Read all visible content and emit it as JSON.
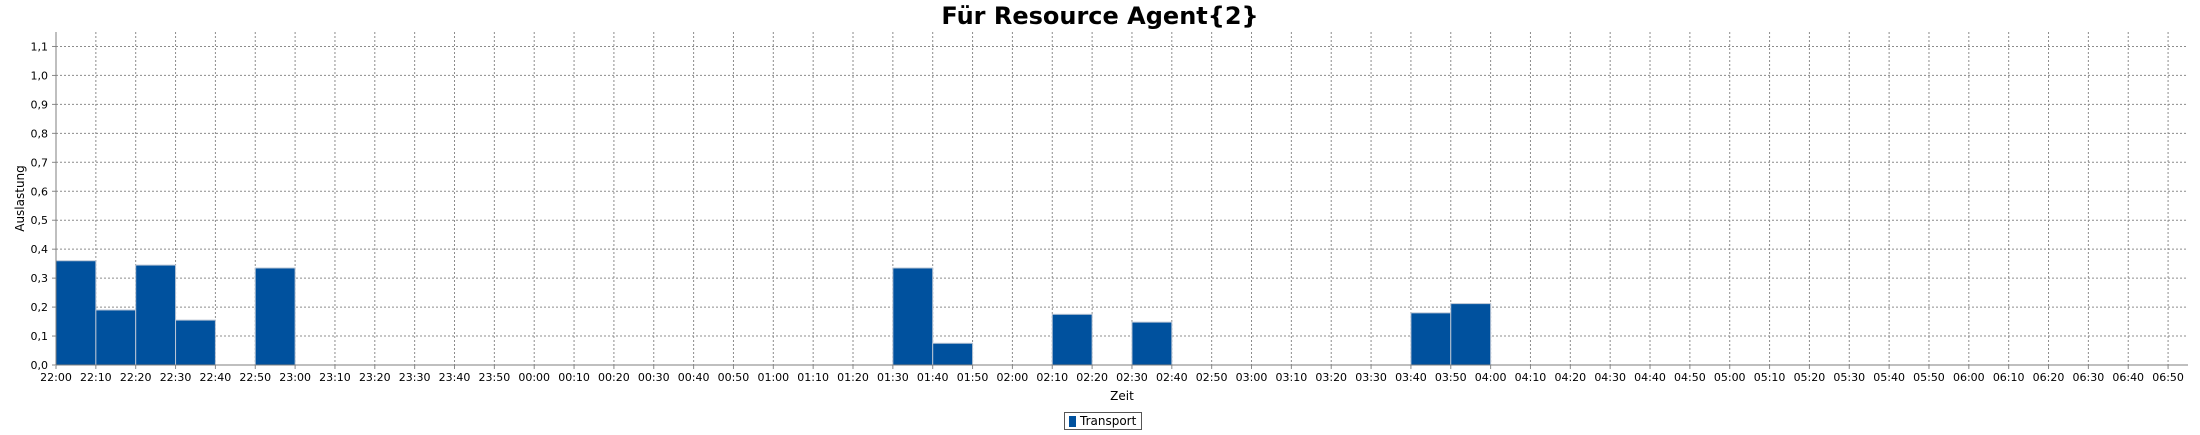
{
  "chart_data": {
    "type": "bar",
    "title": "Für Resource Agent{2}",
    "xlabel": "Zeit",
    "ylabel": "Auslastung",
    "ylim": [
      0,
      1.15
    ],
    "yticks": [
      "0,0",
      "0,1",
      "0,2",
      "0,3",
      "0,4",
      "0,5",
      "0,6",
      "0,7",
      "0,8",
      "0,9",
      "1,0",
      "1,1"
    ],
    "xlim": [
      "22:00",
      "06:55"
    ],
    "x_tick_interval_minutes": 10,
    "x_tick_labels": [
      "22:00",
      "22:10",
      "22:20",
      "22:30",
      "22:40",
      "22:50",
      "23:00",
      "23:10",
      "23:20",
      "23:30",
      "23:40",
      "23:50",
      "00:00",
      "00:10",
      "00:20",
      "00:30",
      "00:40",
      "00:50",
      "01:00",
      "01:10",
      "01:20",
      "01:30",
      "01:40",
      "01:50",
      "02:00",
      "02:10",
      "02:20",
      "02:30",
      "02:40",
      "02:50",
      "03:00",
      "03:10",
      "03:20",
      "03:30",
      "03:40",
      "03:50",
      "04:00",
      "04:10",
      "04:20",
      "04:30",
      "04:40",
      "04:50",
      "05:00",
      "05:10",
      "05:20",
      "05:30",
      "05:40",
      "05:50",
      "06:00",
      "06:10",
      "06:20",
      "06:30",
      "06:40",
      "06:50"
    ],
    "grid": true,
    "legend_position": "bottom-center",
    "series": [
      {
        "name": "Transport",
        "color": "#00519e",
        "bars": [
          {
            "start": "22:00",
            "end": "22:10",
            "value": 0.36
          },
          {
            "start": "22:10",
            "end": "22:20",
            "value": 0.19
          },
          {
            "start": "22:20",
            "end": "22:30",
            "value": 0.345
          },
          {
            "start": "22:30",
            "end": "22:40",
            "value": 0.155
          },
          {
            "start": "22:50",
            "end": "23:00",
            "value": 0.335
          },
          {
            "start": "01:30",
            "end": "01:40",
            "value": 0.335
          },
          {
            "start": "01:40",
            "end": "01:50",
            "value": 0.075
          },
          {
            "start": "02:10",
            "end": "02:20",
            "value": 0.175
          },
          {
            "start": "02:30",
            "end": "02:40",
            "value": 0.148
          },
          {
            "start": "03:40",
            "end": "03:50",
            "value": 0.18
          },
          {
            "start": "03:50",
            "end": "04:00",
            "value": 0.212
          }
        ]
      }
    ]
  }
}
